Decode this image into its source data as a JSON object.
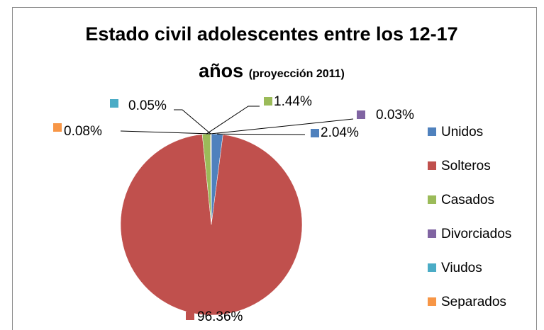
{
  "chart_data": {
    "type": "pie",
    "title": "Estado civil adolescentes entre los 12-17 años",
    "subtitle": "(proyección 2011)",
    "categories": [
      "Unidos",
      "Solteros",
      "Casados",
      "Divorciados",
      "Viudos",
      "Separados"
    ],
    "values": [
      2.04,
      96.36,
      1.44,
      0.03,
      0.05,
      0.08
    ],
    "value_labels": [
      "2.04%",
      "96.36%",
      "1.44%",
      "0.03%",
      "0.05%",
      "0.08%"
    ],
    "colors": [
      "#4f81bd",
      "#c0504d",
      "#9bbb59",
      "#8064a2",
      "#4bacc6",
      "#f79646"
    ],
    "legend": "right"
  }
}
